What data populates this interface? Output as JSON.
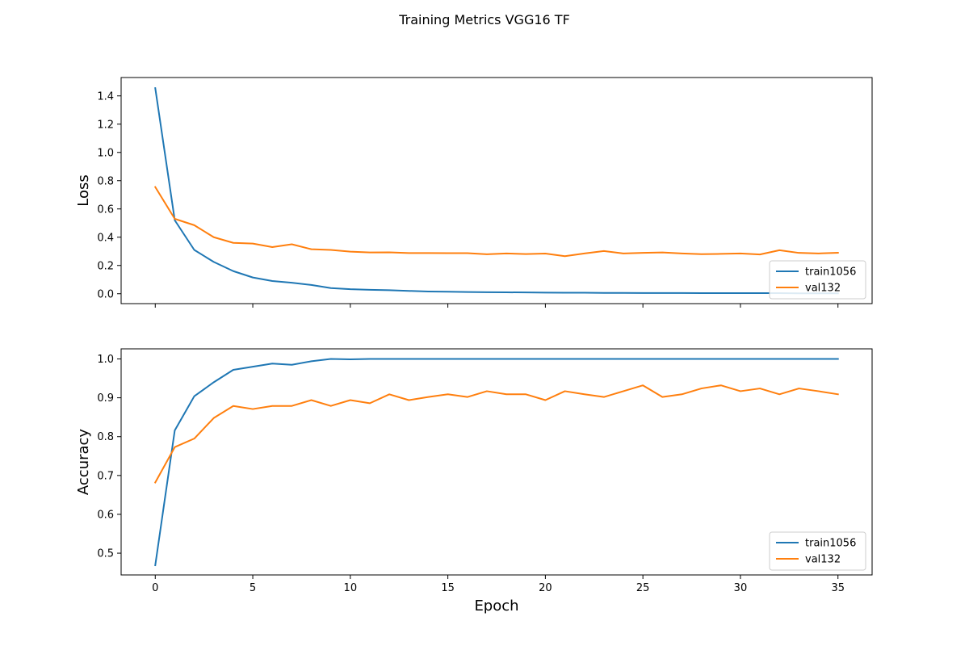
{
  "chart_data": {
    "title": "Training Metrics VGG16 TF",
    "type": "line",
    "xlabel": "Epoch",
    "xlim": [
      -1.75,
      36.75
    ],
    "xticks": [
      0,
      5,
      10,
      15,
      20,
      25,
      30,
      35
    ],
    "grid": false,
    "subplots": [
      {
        "type": "line",
        "ylabel": "Loss",
        "ylim": [
          -0.07,
          1.53
        ],
        "yticks": [
          0.0,
          0.2,
          0.4,
          0.6,
          0.8,
          1.0,
          1.2,
          1.4
        ],
        "show_xtick_labels": false,
        "legend": "lower right",
        "series": [
          {
            "name": "train1056",
            "color": "#1f77b4",
            "x": [
              0,
              1,
              2,
              3,
              4,
              5,
              6,
              7,
              8,
              9,
              10,
              11,
              12,
              13,
              14,
              15,
              16,
              17,
              18,
              19,
              20,
              21,
              22,
              23,
              24,
              25,
              26,
              27,
              28,
              29,
              30,
              31,
              32,
              33,
              34,
              35
            ],
            "y": [
              1.455,
              0.52,
              0.31,
              0.225,
              0.16,
              0.115,
              0.09,
              0.078,
              0.062,
              0.04,
              0.032,
              0.028,
              0.025,
              0.02,
              0.016,
              0.014,
              0.012,
              0.011,
              0.01,
              0.009,
              0.008,
              0.007,
              0.007,
              0.006,
              0.006,
              0.005,
              0.005,
              0.005,
              0.004,
              0.004,
              0.004,
              0.004,
              0.004,
              0.003,
              0.003,
              0.003
            ]
          },
          {
            "name": "val132",
            "color": "#ff7f0e",
            "x": [
              0,
              1,
              2,
              3,
              4,
              5,
              6,
              7,
              8,
              9,
              10,
              11,
              12,
              13,
              14,
              15,
              16,
              17,
              18,
              19,
              20,
              21,
              22,
              23,
              24,
              25,
              26,
              27,
              28,
              29,
              30,
              31,
              32,
              33,
              34,
              35
            ],
            "y": [
              0.755,
              0.53,
              0.485,
              0.4,
              0.36,
              0.355,
              0.33,
              0.35,
              0.315,
              0.31,
              0.298,
              0.292,
              0.293,
              0.288,
              0.288,
              0.287,
              0.287,
              0.279,
              0.285,
              0.281,
              0.284,
              0.266,
              0.285,
              0.302,
              0.285,
              0.289,
              0.292,
              0.285,
              0.28,
              0.282,
              0.285,
              0.278,
              0.308,
              0.289,
              0.285,
              0.29
            ]
          }
        ]
      },
      {
        "type": "line",
        "ylabel": "Accuracy",
        "ylim": [
          0.444,
          1.026
        ],
        "yticks": [
          0.5,
          0.6,
          0.7,
          0.8,
          0.9,
          1.0
        ],
        "show_xtick_labels": true,
        "legend": "lower right",
        "series": [
          {
            "name": "train1056",
            "color": "#1f77b4",
            "x": [
              0,
              1,
              2,
              3,
              4,
              5,
              6,
              7,
              8,
              9,
              10,
              11,
              12,
              13,
              14,
              15,
              16,
              17,
              18,
              19,
              20,
              21,
              22,
              23,
              24,
              25,
              26,
              27,
              28,
              29,
              30,
              31,
              32,
              33,
              34,
              35
            ],
            "y": [
              0.469,
              0.816,
              0.904,
              0.94,
              0.972,
              0.98,
              0.988,
              0.985,
              0.994,
              1.0,
              0.999,
              1.0,
              1.0,
              1.0,
              1.0,
              1.0,
              1.0,
              1.0,
              1.0,
              1.0,
              1.0,
              1.0,
              1.0,
              1.0,
              1.0,
              1.0,
              1.0,
              1.0,
              1.0,
              1.0,
              1.0,
              1.0,
              1.0,
              1.0,
              1.0,
              1.0
            ]
          },
          {
            "name": "val132",
            "color": "#ff7f0e",
            "x": [
              0,
              1,
              2,
              3,
              4,
              5,
              6,
              7,
              8,
              9,
              10,
              11,
              12,
              13,
              14,
              15,
              16,
              17,
              18,
              19,
              20,
              21,
              22,
              23,
              24,
              25,
              26,
              27,
              28,
              29,
              30,
              31,
              32,
              33,
              34,
              35
            ],
            "y": [
              0.682,
              0.773,
              0.795,
              0.848,
              0.879,
              0.871,
              0.879,
              0.879,
              0.894,
              0.879,
              0.894,
              0.886,
              0.909,
              0.894,
              0.902,
              0.909,
              0.902,
              0.917,
              0.909,
              0.909,
              0.894,
              0.917,
              0.909,
              0.902,
              0.917,
              0.932,
              0.902,
              0.909,
              0.924,
              0.932,
              0.917,
              0.924,
              0.909,
              0.924,
              0.917,
              0.909
            ]
          }
        ]
      }
    ]
  }
}
